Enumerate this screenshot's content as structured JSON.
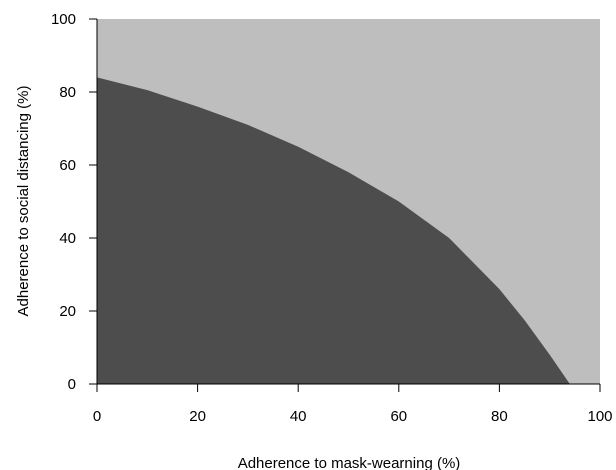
{
  "chart_data": {
    "type": "area",
    "xlabel": "Adherence to mask-wearning (%)",
    "ylabel": "Adherence to social distancing (%)",
    "xlim": [
      0,
      100
    ],
    "ylim": [
      0,
      100
    ],
    "xticks": [
      "0",
      "20",
      "40",
      "60",
      "80",
      "100"
    ],
    "yticks": [
      "0",
      "20",
      "40",
      "60",
      "80",
      "100"
    ],
    "grid": false,
    "series": [
      {
        "boundary": {
          "x": [
            0,
            10,
            20,
            30,
            40,
            50,
            60,
            70,
            80,
            85,
            90,
            94
          ],
          "y": [
            84,
            80.5,
            76,
            71,
            65,
            58,
            50,
            40,
            26,
            17.5,
            8,
            0
          ]
        },
        "fill_below": "#4d4d4d",
        "fill_above": "#bebebe"
      }
    ]
  }
}
